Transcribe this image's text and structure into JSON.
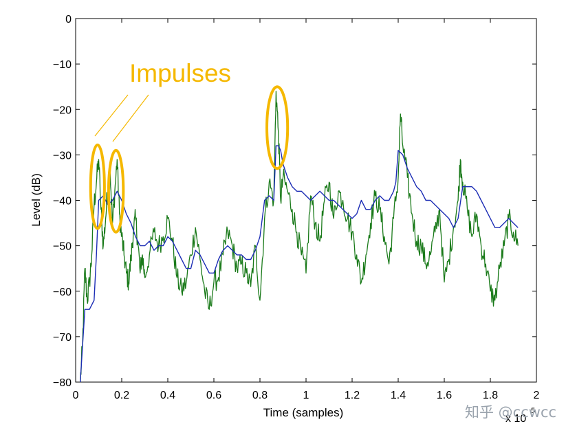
{
  "chart_data": {
    "type": "line",
    "title": "",
    "xlabel": "Time (samples)",
    "ylabel": "Level (dB)",
    "x_multiplier_label": "x 10",
    "x_multiplier_exponent": "5",
    "xlim": [
      0,
      2
    ],
    "ylim": [
      -80,
      0
    ],
    "xticks": [
      0,
      0.2,
      0.4,
      0.6,
      0.8,
      1,
      1.2,
      1.4,
      1.6,
      1.8,
      2
    ],
    "xtick_labels": [
      "0",
      "0.2",
      "0.4",
      "0.6",
      "0.8",
      "1",
      "1.2",
      "1.4",
      "1.6",
      "1.8",
      "2"
    ],
    "yticks": [
      0,
      -10,
      -20,
      -30,
      -40,
      -50,
      -60,
      -70,
      -80
    ],
    "ytick_labels": [
      "0",
      "−10",
      "−20",
      "−30",
      "−40",
      "−50",
      "−60",
      "−70",
      "−80"
    ],
    "grid": false,
    "legend": "none",
    "series": [
      {
        "color": "#1a7a1a",
        "style": "jagged",
        "x": [
          0.02,
          0.03,
          0.04,
          0.05,
          0.06,
          0.07,
          0.08,
          0.09,
          0.1,
          0.11,
          0.12,
          0.13,
          0.14,
          0.15,
          0.16,
          0.17,
          0.18,
          0.19,
          0.2,
          0.21,
          0.22,
          0.23,
          0.24,
          0.25,
          0.26,
          0.27,
          0.28,
          0.29,
          0.3,
          0.32,
          0.34,
          0.36,
          0.38,
          0.4,
          0.42,
          0.44,
          0.46,
          0.48,
          0.5,
          0.52,
          0.54,
          0.56,
          0.58,
          0.6,
          0.62,
          0.64,
          0.66,
          0.68,
          0.7,
          0.72,
          0.74,
          0.76,
          0.78,
          0.8,
          0.82,
          0.84,
          0.86,
          0.87,
          0.88,
          0.89,
          0.9,
          0.92,
          0.94,
          0.96,
          0.98,
          1.0,
          1.02,
          1.04,
          1.06,
          1.08,
          1.1,
          1.12,
          1.14,
          1.16,
          1.18,
          1.2,
          1.22,
          1.24,
          1.26,
          1.28,
          1.3,
          1.32,
          1.34,
          1.36,
          1.38,
          1.4,
          1.41,
          1.42,
          1.44,
          1.46,
          1.48,
          1.5,
          1.52,
          1.54,
          1.56,
          1.58,
          1.6,
          1.62,
          1.64,
          1.66,
          1.67,
          1.68,
          1.7,
          1.72,
          1.74,
          1.76,
          1.78,
          1.8,
          1.82,
          1.84,
          1.86,
          1.88,
          1.9,
          1.92
        ],
        "y": [
          -80,
          -72,
          -55,
          -62,
          -58,
          -52,
          -41,
          -36,
          -31,
          -42,
          -50,
          -44,
          -37,
          -34,
          -45,
          -38,
          -31,
          -43,
          -48,
          -52,
          -56,
          -58,
          -53,
          -47,
          -44,
          -49,
          -56,
          -52,
          -57,
          -52,
          -47,
          -50,
          -48,
          -44,
          -49,
          -57,
          -60,
          -58,
          -52,
          -46,
          -53,
          -60,
          -64,
          -58,
          -57,
          -52,
          -47,
          -50,
          -55,
          -54,
          -56,
          -59,
          -50,
          -62,
          -44,
          -36,
          -40,
          -16,
          -25,
          -40,
          -35,
          -38,
          -42,
          -47,
          -52,
          -56,
          -39,
          -45,
          -49,
          -40,
          -36,
          -44,
          -38,
          -40,
          -44,
          -47,
          -52,
          -58,
          -52,
          -45,
          -39,
          -42,
          -48,
          -54,
          -44,
          -35,
          -21,
          -28,
          -35,
          -43,
          -49,
          -50,
          -54,
          -52,
          -47,
          -42,
          -58,
          -53,
          -46,
          -40,
          -31,
          -36,
          -42,
          -48,
          -43,
          -50,
          -54,
          -60,
          -62,
          -55,
          -50,
          -44,
          -47,
          -50
        ]
      },
      {
        "color": "#1c2db5",
        "style": "smooth",
        "x": [
          0.02,
          0.04,
          0.06,
          0.08,
          0.09,
          0.1,
          0.12,
          0.14,
          0.16,
          0.18,
          0.2,
          0.22,
          0.24,
          0.26,
          0.28,
          0.3,
          0.32,
          0.34,
          0.36,
          0.38,
          0.4,
          0.42,
          0.44,
          0.46,
          0.48,
          0.5,
          0.52,
          0.54,
          0.56,
          0.58,
          0.6,
          0.62,
          0.64,
          0.66,
          0.68,
          0.7,
          0.72,
          0.74,
          0.76,
          0.78,
          0.8,
          0.82,
          0.84,
          0.86,
          0.87,
          0.88,
          0.89,
          0.9,
          0.92,
          0.94,
          0.96,
          0.98,
          1.0,
          1.02,
          1.04,
          1.06,
          1.08,
          1.1,
          1.12,
          1.14,
          1.16,
          1.18,
          1.2,
          1.22,
          1.24,
          1.26,
          1.28,
          1.3,
          1.32,
          1.34,
          1.36,
          1.38,
          1.39,
          1.4,
          1.42,
          1.44,
          1.46,
          1.48,
          1.5,
          1.52,
          1.54,
          1.56,
          1.58,
          1.6,
          1.62,
          1.64,
          1.66,
          1.68,
          1.7,
          1.72,
          1.74,
          1.76,
          1.78,
          1.8,
          1.82,
          1.84,
          1.86,
          1.88,
          1.9,
          1.92
        ],
        "y": [
          -80,
          -64,
          -64,
          -62,
          -52,
          -40,
          -39,
          -41,
          -40,
          -38,
          -40,
          -43,
          -45,
          -48,
          -50,
          -50,
          -49,
          -51,
          -50,
          -50,
          -48,
          -49,
          -51,
          -53,
          -55,
          -55,
          -51,
          -52,
          -54,
          -56,
          -56,
          -53,
          -51,
          -50,
          -51,
          -52,
          -52,
          -53,
          -53,
          -51,
          -48,
          -40,
          -39,
          -40,
          -28,
          -28,
          -29,
          -32,
          -35,
          -37,
          -38,
          -38,
          -39,
          -40,
          -39,
          -38,
          -39,
          -40,
          -40,
          -41,
          -42,
          -43,
          -44,
          -43,
          -40,
          -42,
          -42,
          -40,
          -39,
          -40,
          -40,
          -38,
          -36,
          -29,
          -30,
          -33,
          -35,
          -37,
          -38,
          -40,
          -40,
          -41,
          -42,
          -43,
          -44,
          -46,
          -44,
          -37,
          -37,
          -37,
          -38,
          -40,
          -42,
          -44,
          -46,
          -46,
          -45,
          -44,
          -45,
          -46
        ]
      }
    ],
    "annotation": {
      "text": "Impulses",
      "color": "#f5b800",
      "ellipses": [
        {
          "cx": 0.095,
          "cy": -37,
          "rx": 0.03,
          "ry": 9.2
        },
        {
          "cx": 0.175,
          "cy": -38,
          "rx": 0.032,
          "ry": 9.0
        },
        {
          "cx": 0.875,
          "cy": -24,
          "rx": 0.045,
          "ry": 9.0
        }
      ]
    }
  },
  "watermark": "知乎 @ccwcc"
}
